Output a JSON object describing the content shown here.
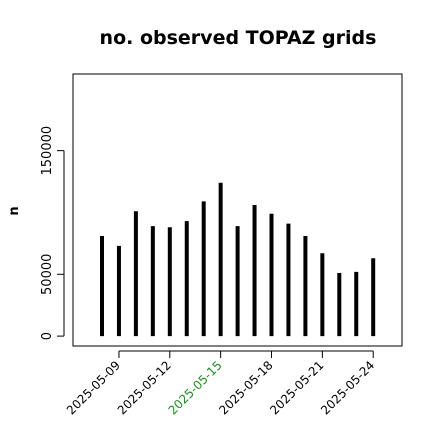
{
  "chart_data": {
    "type": "bar",
    "title": "no. observed TOPAZ grids",
    "ylabel": "n",
    "ylim": [
      -8000,
      212000
    ],
    "yticks": [
      0,
      50000,
      150000
    ],
    "ytick_labels": [
      "0",
      "50000",
      "150000"
    ],
    "grid": false,
    "categories": [
      "2025-05-08",
      "2025-05-09",
      "2025-05-10",
      "2025-05-11",
      "2025-05-12",
      "2025-05-13",
      "2025-05-14",
      "2025-05-15",
      "2025-05-16",
      "2025-05-17",
      "2025-05-18",
      "2025-05-19",
      "2025-05-20",
      "2025-05-21",
      "2025-05-22",
      "2025-05-23",
      "2025-05-24"
    ],
    "values": [
      81000,
      73000,
      101000,
      89000,
      88000,
      93000,
      109000,
      124000,
      89000,
      106000,
      99000,
      91000,
      81000,
      67000,
      51000,
      52000,
      63000
    ],
    "x_tick_labels": [
      {
        "text": "2025-05-09",
        "color": "#000000"
      },
      {
        "text": "2025-05-12",
        "color": "#000000"
      },
      {
        "text": "2025-05-15",
        "color": "#228B22"
      },
      {
        "text": "2025-05-18",
        "color": "#000000"
      },
      {
        "text": "2025-05-21",
        "color": "#000000"
      },
      {
        "text": "2025-05-24",
        "color": "#000000"
      }
    ],
    "bar_color": "#000000"
  }
}
